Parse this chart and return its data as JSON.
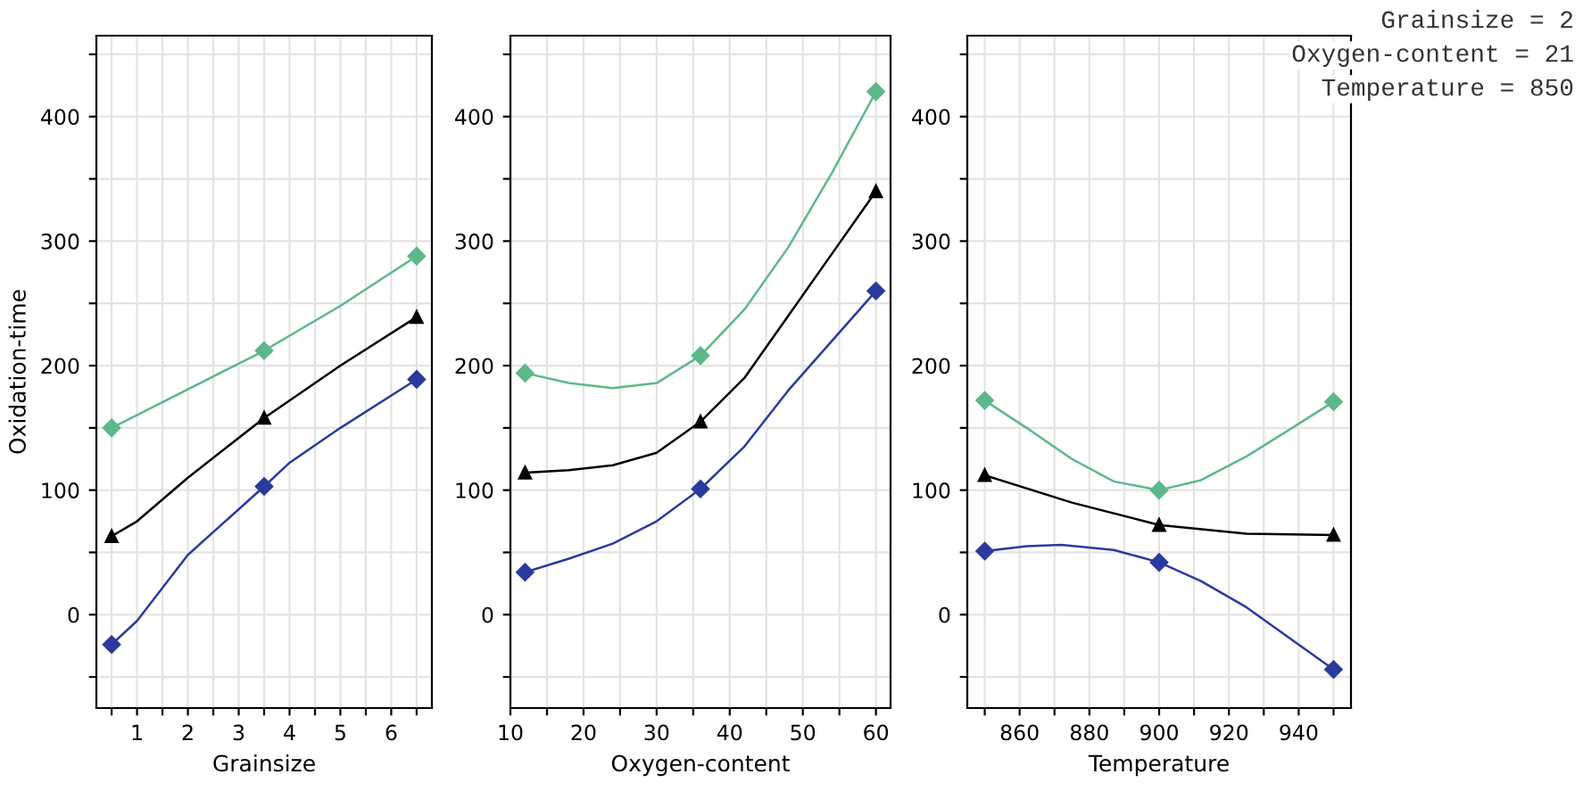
{
  "chart_data": [
    {
      "type": "line",
      "xlabel": "Grainsize",
      "ylabel": "Oxidation-time",
      "x": [
        0.5,
        3.5,
        6.5
      ],
      "xlim": [
        0.2,
        6.8
      ],
      "xticks": [
        {
          "value": 0.5,
          "label": null
        },
        1,
        {
          "value": 1.5,
          "label": null
        },
        2,
        {
          "value": 2.5,
          "label": null
        },
        3,
        {
          "value": 3.5,
          "label": null
        },
        4,
        {
          "value": 4.5,
          "label": null
        },
        5,
        {
          "value": 5.5,
          "label": null
        },
        6,
        {
          "value": 6.5,
          "label": null
        }
      ],
      "ylim": [
        -75,
        465
      ],
      "yticks": [
        {
          "value": -50,
          "label": null
        },
        0,
        {
          "value": 50,
          "label": null
        },
        100,
        {
          "value": 150,
          "label": null
        },
        200,
        {
          "value": 250,
          "label": null
        },
        300,
        {
          "value": 350,
          "label": null
        },
        400,
        {
          "value": 450,
          "label": null
        }
      ],
      "grid": true,
      "line_style": "solid",
      "series": [
        {
          "color": "#5cb88a",
          "marker": "none",
          "x": [
            0.5,
            2,
            3.5,
            5,
            6.5
          ],
          "values": [
            150,
            181,
            212,
            248,
            288
          ]
        },
        {
          "color": "#000000",
          "marker": "none",
          "x": [
            0.5,
            1,
            2,
            3.5,
            5,
            6.5
          ],
          "values": [
            63,
            75,
            110,
            158,
            200,
            239
          ]
        },
        {
          "color": "#2b3a9e",
          "marker": "none",
          "x": [
            0.5,
            1,
            2,
            3.5,
            4,
            5,
            6.5
          ],
          "values": [
            -24,
            -5,
            48,
            103,
            122,
            150,
            189
          ]
        },
        {
          "type": "scatter",
          "color": "#5cb88a",
          "marker": "diamond",
          "values": [
            150,
            212,
            288
          ]
        },
        {
          "type": "scatter",
          "color": "#000000",
          "marker": "triangle",
          "values": [
            63,
            158,
            239
          ]
        },
        {
          "type": "scatter",
          "color": "#2b3a9e",
          "marker": "diamond",
          "values": [
            -24,
            103,
            189
          ]
        }
      ]
    },
    {
      "type": "line",
      "xlabel": "Oxygen-content",
      "x": [
        12,
        36,
        60
      ],
      "xlim": [
        10,
        62
      ],
      "xticks": [
        10,
        {
          "value": 15,
          "label": null
        },
        20,
        {
          "value": 25,
          "label": null
        },
        30,
        {
          "value": 35,
          "label": null
        },
        40,
        {
          "value": 45,
          "label": null
        },
        50,
        {
          "value": 55,
          "label": null
        },
        60
      ],
      "ylim": [
        -75,
        465
      ],
      "yticks": [
        {
          "value": -50,
          "label": null
        },
        0,
        {
          "value": 50,
          "label": null
        },
        100,
        {
          "value": 150,
          "label": null
        },
        200,
        {
          "value": 250,
          "label": null
        },
        300,
        {
          "value": 350,
          "label": null
        },
        400,
        {
          "value": 450,
          "label": null
        }
      ],
      "grid": true,
      "line_style": "solid",
      "series": [
        {
          "color": "#5cb88a",
          "marker": "none",
          "x": [
            12,
            18,
            24,
            30,
            36,
            42,
            48,
            54,
            60
          ],
          "values": [
            194,
            186,
            182,
            186,
            208,
            245,
            295,
            355,
            420
          ]
        },
        {
          "color": "#000000",
          "marker": "none",
          "x": [
            12,
            18,
            24,
            30,
            36,
            42,
            48,
            54,
            60
          ],
          "values": [
            114,
            116,
            120,
            130,
            155,
            190,
            240,
            290,
            340
          ]
        },
        {
          "color": "#2b3a9e",
          "marker": "none",
          "x": [
            12,
            18,
            24,
            30,
            36,
            42,
            48,
            54,
            60
          ],
          "values": [
            34,
            45,
            57,
            75,
            101,
            135,
            180,
            220,
            260
          ]
        },
        {
          "type": "scatter",
          "color": "#5cb88a",
          "marker": "diamond",
          "values": [
            194,
            208,
            420
          ]
        },
        {
          "type": "scatter",
          "color": "#000000",
          "marker": "triangle",
          "values": [
            114,
            155,
            340
          ]
        },
        {
          "type": "scatter",
          "color": "#2b3a9e",
          "marker": "diamond",
          "values": [
            34,
            101,
            260
          ]
        }
      ]
    },
    {
      "type": "line",
      "xlabel": "Temperature",
      "x": [
        850,
        900,
        950
      ],
      "xlim": [
        845,
        955
      ],
      "xticks": [
        {
          "value": 850,
          "label": null
        },
        860,
        {
          "value": 870,
          "label": null
        },
        880,
        {
          "value": 890,
          "label": null
        },
        900,
        {
          "value": 910,
          "label": null
        },
        920,
        {
          "value": 930,
          "label": null
        },
        940,
        {
          "value": 950,
          "label": null
        }
      ],
      "ylim": [
        -75,
        465
      ],
      "yticks": [
        {
          "value": -50,
          "label": null
        },
        0,
        {
          "value": 50,
          "label": null
        },
        100,
        {
          "value": 150,
          "label": null
        },
        200,
        {
          "value": 250,
          "label": null
        },
        300,
        {
          "value": 350,
          "label": null
        },
        400,
        {
          "value": 450,
          "label": null
        }
      ],
      "grid": true,
      "line_style": "solid",
      "annotations": [
        "Grainsize = 2",
        "Oxygen-content = 21",
        "Temperature = 850"
      ],
      "series": [
        {
          "color": "#5cb88a",
          "marker": "none",
          "x": [
            850,
            862,
            875,
            887,
            900,
            912,
            925,
            937,
            950
          ],
          "values": [
            172,
            150,
            125,
            107,
            100,
            108,
            127,
            148,
            171
          ]
        },
        {
          "color": "#000000",
          "marker": "none",
          "x": [
            850,
            875,
            900,
            925,
            950
          ],
          "values": [
            112,
            90,
            72,
            65,
            64
          ]
        },
        {
          "color": "#2b3a9e",
          "marker": "none",
          "x": [
            850,
            862,
            872,
            887,
            900,
            912,
            925,
            937,
            950
          ],
          "values": [
            51,
            55,
            56,
            52,
            42,
            27,
            6,
            -18,
            -44
          ]
        },
        {
          "type": "scatter",
          "color": "#5cb88a",
          "marker": "diamond",
          "values": [
            172,
            100,
            171
          ]
        },
        {
          "type": "scatter",
          "color": "#000000",
          "marker": "triangle",
          "values": [
            112,
            72,
            64
          ]
        },
        {
          "type": "scatter",
          "color": "#2b3a9e",
          "marker": "diamond",
          "values": [
            51,
            42,
            -44
          ]
        }
      ]
    }
  ]
}
